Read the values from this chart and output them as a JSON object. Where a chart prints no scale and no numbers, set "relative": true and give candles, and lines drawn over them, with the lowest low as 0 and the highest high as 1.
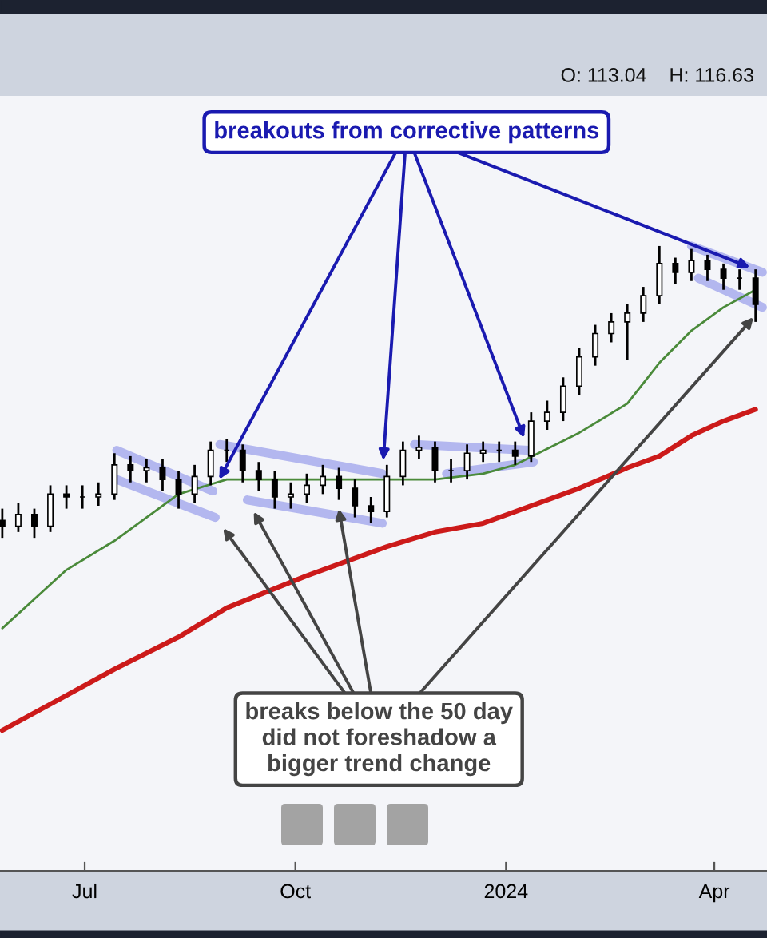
{
  "chart_data": {
    "type": "candlestick",
    "relative": true,
    "x": [
      "2023-05-26",
      "2023-06-02",
      "2023-06-09",
      "2023-06-16",
      "2023-06-23",
      "2023-06-30",
      "2023-07-07",
      "2023-07-14",
      "2023-07-21",
      "2023-07-28",
      "2023-08-04",
      "2023-08-11",
      "2023-08-18",
      "2023-08-25",
      "2023-09-01",
      "2023-09-08",
      "2023-09-15",
      "2023-09-22",
      "2023-09-29",
      "2023-10-06",
      "2023-10-13",
      "2023-10-20",
      "2023-10-27",
      "2023-11-03",
      "2023-11-10",
      "2023-11-17",
      "2023-11-24",
      "2023-12-01",
      "2023-12-08",
      "2023-12-15",
      "2023-12-22",
      "2023-12-29",
      "2024-01-05",
      "2024-01-12",
      "2024-01-19",
      "2024-01-26",
      "2024-02-02",
      "2024-02-09",
      "2024-02-16",
      "2024-02-23",
      "2024-03-01",
      "2024-03-08",
      "2024-03-15",
      "2024-03-22",
      "2024-03-29",
      "2024-04-05",
      "2024-04-12",
      "2024-04-19"
    ],
    "ohlc": [
      [
        0.06,
        0.1,
        0.0,
        0.04
      ],
      [
        0.04,
        0.12,
        0.02,
        0.08
      ],
      [
        0.08,
        0.1,
        0.0,
        0.04
      ],
      [
        0.04,
        0.18,
        0.02,
        0.15
      ],
      [
        0.15,
        0.18,
        0.1,
        0.14
      ],
      [
        0.14,
        0.18,
        0.1,
        0.14
      ],
      [
        0.14,
        0.19,
        0.11,
        0.15
      ],
      [
        0.15,
        0.29,
        0.13,
        0.25
      ],
      [
        0.25,
        0.28,
        0.19,
        0.23
      ],
      [
        0.23,
        0.27,
        0.19,
        0.24
      ],
      [
        0.24,
        0.27,
        0.16,
        0.2
      ],
      [
        0.2,
        0.23,
        0.1,
        0.15
      ],
      [
        0.15,
        0.25,
        0.12,
        0.21
      ],
      [
        0.21,
        0.33,
        0.18,
        0.3
      ],
      [
        0.3,
        0.34,
        0.26,
        0.3
      ],
      [
        0.3,
        0.32,
        0.19,
        0.23
      ],
      [
        0.23,
        0.26,
        0.16,
        0.2
      ],
      [
        0.2,
        0.23,
        0.1,
        0.14
      ],
      [
        0.14,
        0.19,
        0.1,
        0.15
      ],
      [
        0.15,
        0.22,
        0.12,
        0.18
      ],
      [
        0.18,
        0.25,
        0.15,
        0.21
      ],
      [
        0.21,
        0.24,
        0.13,
        0.17
      ],
      [
        0.17,
        0.2,
        0.07,
        0.11
      ],
      [
        0.11,
        0.14,
        0.05,
        0.09
      ],
      [
        0.09,
        0.25,
        0.07,
        0.21
      ],
      [
        0.21,
        0.33,
        0.18,
        0.3
      ],
      [
        0.3,
        0.35,
        0.27,
        0.31
      ],
      [
        0.31,
        0.33,
        0.19,
        0.23
      ],
      [
        0.23,
        0.27,
        0.19,
        0.23
      ],
      [
        0.23,
        0.32,
        0.2,
        0.29
      ],
      [
        0.29,
        0.33,
        0.26,
        0.3
      ],
      [
        0.3,
        0.33,
        0.26,
        0.3
      ],
      [
        0.3,
        0.33,
        0.25,
        0.28
      ],
      [
        0.28,
        0.43,
        0.26,
        0.4
      ],
      [
        0.4,
        0.47,
        0.37,
        0.43
      ],
      [
        0.43,
        0.55,
        0.4,
        0.52
      ],
      [
        0.52,
        0.65,
        0.49,
        0.62
      ],
      [
        0.62,
        0.73,
        0.59,
        0.7
      ],
      [
        0.7,
        0.77,
        0.67,
        0.74
      ],
      [
        0.74,
        0.8,
        0.61,
        0.77
      ],
      [
        0.77,
        0.86,
        0.74,
        0.83
      ],
      [
        0.83,
        1.0,
        0.8,
        0.94
      ],
      [
        0.94,
        0.96,
        0.87,
        0.91
      ],
      [
        0.91,
        0.99,
        0.88,
        0.95
      ],
      [
        0.95,
        0.97,
        0.88,
        0.92
      ],
      [
        0.92,
        0.94,
        0.85,
        0.89
      ],
      [
        0.89,
        0.92,
        0.85,
        0.89
      ],
      [
        0.89,
        0.92,
        0.74,
        0.8
      ]
    ],
    "color": "#000000",
    "series": [
      {
        "type": "line",
        "color": "#4a8a3a",
        "x": [
          "2023-05-26",
          "2023-06-23",
          "2023-07-14",
          "2023-08-11",
          "2023-09-01",
          "2023-10-06",
          "2023-11-10",
          "2023-12-01",
          "2023-12-22",
          "2024-01-05",
          "2024-02-02",
          "2024-02-23",
          "2024-03-08",
          "2024-03-22",
          "2024-04-05",
          "2024-04-19"
        ],
        "values": [
          -0.31,
          -0.11,
          -0.01,
          0.15,
          0.2,
          0.2,
          0.2,
          0.2,
          0.22,
          0.25,
          0.36,
          0.46,
          0.6,
          0.71,
          0.79,
          0.85
        ]
      },
      {
        "type": "line",
        "color": "#cc1a1a",
        "x": [
          "2023-05-26",
          "2023-06-23",
          "2023-07-14",
          "2023-08-11",
          "2023-09-01",
          "2023-10-06",
          "2023-11-10",
          "2023-12-01",
          "2023-12-22",
          "2024-01-05",
          "2024-02-02",
          "2024-02-23",
          "2024-03-08",
          "2024-03-22",
          "2024-04-05",
          "2024-04-19"
        ],
        "values": [
          -0.66,
          -0.54,
          -0.45,
          -0.34,
          -0.24,
          -0.13,
          -0.03,
          0.02,
          0.05,
          0.09,
          0.17,
          0.24,
          0.28,
          0.35,
          0.4,
          0.44
        ]
      },
      {
        "type": "line",
        "color": "#b3b7ef",
        "x": [
          "2023-07-15",
          "2023-08-26"
        ],
        "values": [
          0.3,
          0.16
        ]
      },
      {
        "type": "line",
        "color": "#b3b7ef",
        "x": [
          "2023-07-15",
          "2023-08-27"
        ],
        "values": [
          0.2,
          0.07
        ]
      },
      {
        "type": "line",
        "color": "#b3b7ef",
        "x": [
          "2023-08-29",
          "2023-11-08"
        ],
        "values": [
          0.32,
          0.22
        ]
      },
      {
        "type": "line",
        "color": "#b3b7ef",
        "x": [
          "2023-09-10",
          "2023-11-08"
        ],
        "values": [
          0.13,
          0.05
        ]
      },
      {
        "type": "line",
        "color": "#b3b7ef",
        "x": [
          "2023-11-22",
          "2024-01-11"
        ],
        "values": [
          0.32,
          0.3
        ]
      },
      {
        "type": "line",
        "color": "#b3b7ef",
        "x": [
          "2023-12-06",
          "2024-01-13"
        ],
        "values": [
          0.22,
          0.26
        ]
      },
      {
        "type": "line",
        "color": "#b3b7ef",
        "x": [
          "2024-03-22",
          "2024-04-22"
        ],
        "values": [
          1.0,
          0.91
        ]
      },
      {
        "type": "line",
        "color": "#b3b7ef",
        "x": [
          "2024-03-25",
          "2024-04-22"
        ],
        "values": [
          0.89,
          0.79
        ]
      }
    ],
    "annotations": [
      "breakouts from corrective patterns",
      {
        "text": "breaks below the 50 day\ndid not foreshadow a\nbigger trend change",
        "x": "2023-10-20",
        "y": 0.1
      },
      "O: 113.04",
      "H: 116.63"
    ],
    "xlim": [
      "2023-05-25",
      "2024-04-24"
    ],
    "xticks": [
      {
        "value": "2023-07-01",
        "label": "Jul"
      },
      {
        "value": "2023-10-01",
        "label": "Oct"
      },
      {
        "value": "2024-01-01",
        "label": "2024"
      },
      {
        "value": "2024-04-01",
        "label": "Apr"
      }
    ],
    "tick_labels": "x",
    "grid": false,
    "legend": false
  }
}
